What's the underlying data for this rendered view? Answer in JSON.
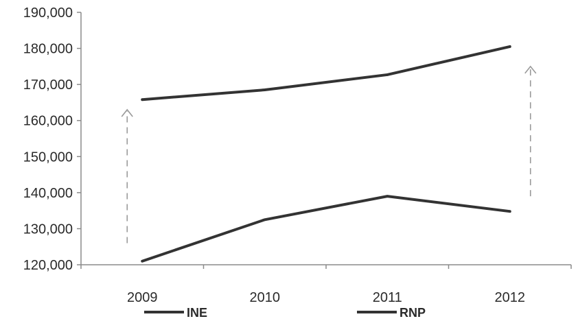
{
  "chart_data": {
    "type": "line",
    "title": "",
    "xlabel": "",
    "ylabel": "",
    "categories": [
      "2009",
      "2010",
      "2011",
      "2012"
    ],
    "ylim": [
      120000,
      190000
    ],
    "y_ticks": [
      "120,000",
      "130,000",
      "140,000",
      "150,000",
      "160,000",
      "170,000",
      "180,000",
      "190,000"
    ],
    "y_tick_values": [
      120000,
      130000,
      140000,
      150000,
      160000,
      170000,
      180000,
      190000
    ],
    "grid": false,
    "legend_position": "bottom",
    "series": [
      {
        "name": "INE",
        "values": [
          121000,
          132500,
          139000,
          134800
        ],
        "color": "#333333"
      },
      {
        "name": "RNP",
        "values": [
          165800,
          168500,
          172700,
          180500
        ],
        "color": "#333333"
      }
    ],
    "annotations": [
      {
        "type": "dashed-arrow",
        "category": "2009",
        "from": 126000,
        "to": 163000,
        "color": "#999999"
      },
      {
        "type": "dashed-arrow",
        "category": "2012",
        "from": 139000,
        "to": 175000,
        "color": "#999999"
      }
    ]
  }
}
